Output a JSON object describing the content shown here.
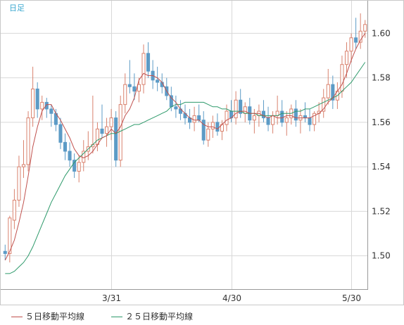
{
  "period_label": "日足",
  "colors": {
    "up_candle": "#d9826e",
    "down_candle": "#5c9bc6",
    "ma5": "#c0504d",
    "ma25": "#2e9a6b",
    "grid": "#d8d8d8",
    "frame": "#999999",
    "axis_text": "#333333"
  },
  "legend": {
    "ma5_label": "５日移動平均線",
    "ma25_label": "２５日移動平均線"
  },
  "chart_data": {
    "type": "candlestick",
    "title": "",
    "xlabel": "",
    "ylabel": "",
    "ylim": [
      1.485,
      1.615
    ],
    "y_ticks": [
      1.5,
      1.52,
      1.54,
      1.56,
      1.58,
      1.6
    ],
    "y_tick_labels": [
      "1.50",
      "1.52",
      "1.54",
      "1.56",
      "1.58",
      "1.60"
    ],
    "x_tick_labels": [
      "3/31",
      "4/30",
      "5/30"
    ],
    "x_tick_indices": [
      23,
      49,
      75
    ],
    "grid": true,
    "series": [
      {
        "name": "５日移動平均線",
        "kind": "line"
      },
      {
        "name": "２５日移動平均線",
        "kind": "line"
      }
    ],
    "candles": [
      [
        1.502,
        1.505,
        1.498,
        1.501
      ],
      [
        1.501,
        1.518,
        1.497,
        1.517
      ],
      [
        1.516,
        1.53,
        1.512,
        1.525
      ],
      [
        1.525,
        1.545,
        1.522,
        1.54
      ],
      [
        1.54,
        1.552,
        1.535,
        1.541
      ],
      [
        1.541,
        1.565,
        1.538,
        1.562
      ],
      [
        1.562,
        1.585,
        1.558,
        1.575
      ],
      [
        1.575,
        1.578,
        1.562,
        1.566
      ],
      [
        1.566,
        1.572,
        1.561,
        1.569
      ],
      [
        1.569,
        1.571,
        1.562,
        1.566
      ],
      [
        1.566,
        1.568,
        1.558,
        1.564
      ],
      [
        1.564,
        1.566,
        1.556,
        1.559
      ],
      [
        1.559,
        1.562,
        1.548,
        1.551
      ],
      [
        1.551,
        1.555,
        1.543,
        1.547
      ],
      [
        1.547,
        1.551,
        1.54,
        1.543
      ],
      [
        1.543,
        1.546,
        1.535,
        1.538
      ],
      [
        1.538,
        1.545,
        1.533,
        1.542
      ],
      [
        1.542,
        1.552,
        1.538,
        1.547
      ],
      [
        1.547,
        1.556,
        1.543,
        1.549
      ],
      [
        1.549,
        1.572,
        1.546,
        1.55
      ],
      [
        1.55,
        1.56,
        1.547,
        1.557
      ],
      [
        1.557,
        1.568,
        1.553,
        1.555
      ],
      [
        1.555,
        1.562,
        1.549,
        1.558
      ],
      [
        1.558,
        1.566,
        1.552,
        1.562
      ],
      [
        1.562,
        1.565,
        1.54,
        1.543
      ],
      [
        1.543,
        1.572,
        1.54,
        1.568
      ],
      [
        1.568,
        1.582,
        1.564,
        1.577
      ],
      [
        1.577,
        1.588,
        1.573,
        1.576
      ],
      [
        1.576,
        1.582,
        1.57,
        1.574
      ],
      [
        1.574,
        1.58,
        1.569,
        1.577
      ],
      [
        1.577,
        1.595,
        1.573,
        1.591
      ],
      [
        1.591,
        1.596,
        1.58,
        1.583
      ],
      [
        1.583,
        1.588,
        1.575,
        1.579
      ],
      [
        1.579,
        1.585,
        1.574,
        1.578
      ],
      [
        1.578,
        1.582,
        1.573,
        1.576
      ],
      [
        1.576,
        1.58,
        1.57,
        1.572
      ],
      [
        1.572,
        1.576,
        1.565,
        1.567
      ],
      [
        1.567,
        1.572,
        1.562,
        1.566
      ],
      [
        1.566,
        1.57,
        1.561,
        1.564
      ],
      [
        1.564,
        1.568,
        1.559,
        1.562
      ],
      [
        1.562,
        1.566,
        1.557,
        1.56
      ],
      [
        1.56,
        1.567,
        1.556,
        1.563
      ],
      [
        1.563,
        1.568,
        1.56,
        1.561
      ],
      [
        1.561,
        1.565,
        1.55,
        1.552
      ],
      [
        1.552,
        1.56,
        1.549,
        1.557
      ],
      [
        1.557,
        1.563,
        1.553,
        1.56
      ],
      [
        1.56,
        1.564,
        1.554,
        1.556
      ],
      [
        1.556,
        1.561,
        1.552,
        1.559
      ],
      [
        1.559,
        1.568,
        1.556,
        1.565
      ],
      [
        1.565,
        1.57,
        1.56,
        1.562
      ],
      [
        1.562,
        1.574,
        1.559,
        1.57
      ],
      [
        1.57,
        1.575,
        1.562,
        1.564
      ],
      [
        1.564,
        1.569,
        1.56,
        1.567
      ],
      [
        1.567,
        1.571,
        1.559,
        1.561
      ],
      [
        1.561,
        1.566,
        1.555,
        1.563
      ],
      [
        1.563,
        1.568,
        1.558,
        1.565
      ],
      [
        1.565,
        1.57,
        1.56,
        1.562
      ],
      [
        1.562,
        1.567,
        1.556,
        1.559
      ],
      [
        1.559,
        1.565,
        1.555,
        1.563
      ],
      [
        1.563,
        1.572,
        1.559,
        1.565
      ],
      [
        1.565,
        1.57,
        1.558,
        1.56
      ],
      [
        1.56,
        1.565,
        1.554,
        1.562
      ],
      [
        1.562,
        1.568,
        1.559,
        1.566
      ],
      [
        1.566,
        1.57,
        1.558,
        1.561
      ],
      [
        1.561,
        1.566,
        1.555,
        1.563
      ],
      [
        1.563,
        1.569,
        1.56,
        1.562
      ],
      [
        1.562,
        1.566,
        1.556,
        1.559
      ],
      [
        1.559,
        1.565,
        1.556,
        1.564
      ],
      [
        1.564,
        1.569,
        1.56,
        1.565
      ],
      [
        1.565,
        1.575,
        1.562,
        1.571
      ],
      [
        1.571,
        1.584,
        1.568,
        1.577
      ],
      [
        1.577,
        1.581,
        1.566,
        1.57
      ],
      [
        1.57,
        1.578,
        1.566,
        1.574
      ],
      [
        1.574,
        1.59,
        1.571,
        1.586
      ],
      [
        1.586,
        1.596,
        1.58,
        1.592
      ],
      [
        1.592,
        1.6,
        1.587,
        1.598
      ],
      [
        1.598,
        1.607,
        1.593,
        1.596
      ],
      [
        1.596,
        1.609,
        1.593,
        1.601
      ],
      [
        1.601,
        1.606,
        1.598,
        1.604
      ]
    ],
    "ma5": [
      1.498,
      1.502,
      1.507,
      1.515,
      1.524,
      1.536,
      1.549,
      1.558,
      1.565,
      1.568,
      1.568,
      1.564,
      1.561,
      1.557,
      1.553,
      1.548,
      1.545,
      1.544,
      1.545,
      1.547,
      1.55,
      1.553,
      1.554,
      1.557,
      1.555,
      1.558,
      1.563,
      1.566,
      1.571,
      1.579,
      1.582,
      1.581,
      1.581,
      1.58,
      1.578,
      1.574,
      1.571,
      1.569,
      1.566,
      1.564,
      1.562,
      1.561,
      1.561,
      1.559,
      1.558,
      1.558,
      1.557,
      1.559,
      1.561,
      1.562,
      1.564,
      1.565,
      1.565,
      1.564,
      1.564,
      1.564,
      1.563,
      1.562,
      1.563,
      1.562,
      1.562,
      1.563,
      1.563,
      1.562,
      1.562,
      1.562,
      1.562,
      1.563,
      1.564,
      1.566,
      1.569,
      1.571,
      1.574,
      1.577,
      1.582,
      1.588,
      1.593,
      1.597,
      1.6
    ],
    "ma25": [
      1.492,
      1.492,
      1.493,
      1.495,
      1.497,
      1.5,
      1.504,
      1.509,
      1.514,
      1.519,
      1.524,
      1.528,
      1.532,
      1.536,
      1.539,
      1.542,
      1.544,
      1.546,
      1.548,
      1.55,
      1.552,
      1.553,
      1.554,
      1.555,
      1.555,
      1.556,
      1.557,
      1.558,
      1.559,
      1.559,
      1.56,
      1.561,
      1.562,
      1.563,
      1.564,
      1.565,
      1.567,
      1.568,
      1.568,
      1.569,
      1.569,
      1.569,
      1.569,
      1.569,
      1.568,
      1.567,
      1.567,
      1.566,
      1.566,
      1.565,
      1.565,
      1.565,
      1.564,
      1.564,
      1.564,
      1.563,
      1.563,
      1.563,
      1.563,
      1.563,
      1.564,
      1.564,
      1.564,
      1.565,
      1.565,
      1.566,
      1.566,
      1.567,
      1.568,
      1.569,
      1.57,
      1.571,
      1.572,
      1.574,
      1.576,
      1.578,
      1.581,
      1.584,
      1.587
    ]
  }
}
